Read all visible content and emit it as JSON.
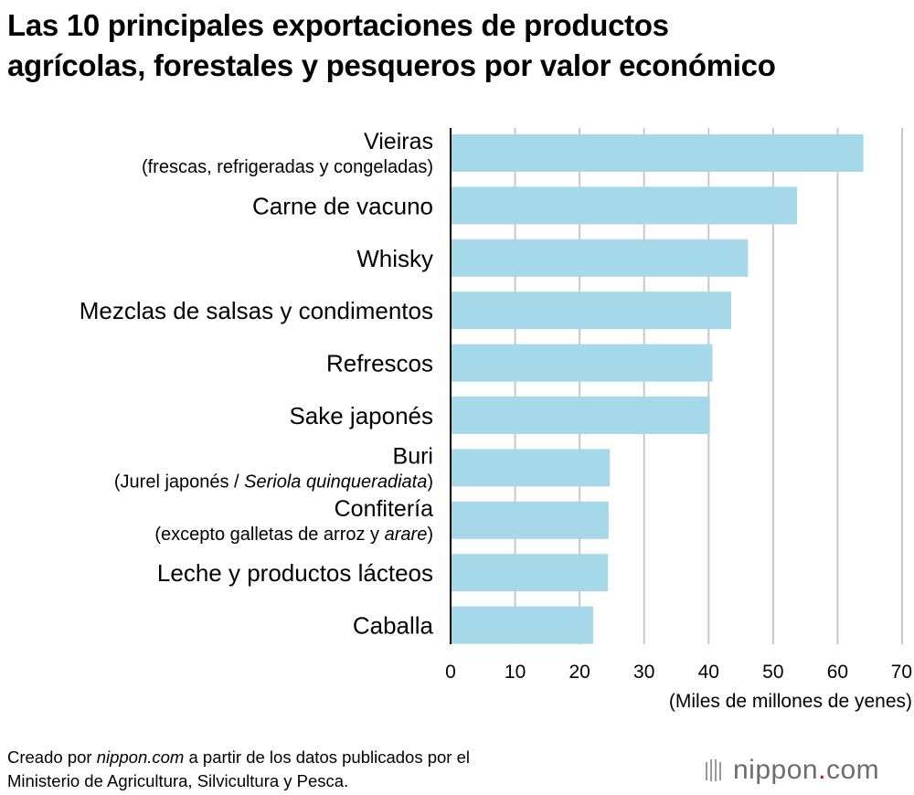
{
  "title": {
    "line1": "Las 10 principales exportaciones de productos",
    "line2": "agrícolas, forestales y pesqueros por valor económico"
  },
  "chart_data": {
    "type": "bar",
    "orientation": "horizontal",
    "categories": [
      {
        "main": "Vieiras",
        "sub": [
          {
            "t": "(frescas, refrigeradas y congeladas)"
          }
        ]
      },
      {
        "main": "Carne de vacuno",
        "sub": []
      },
      {
        "main": "Whisky",
        "sub": []
      },
      {
        "main": "Mezclas de salsas y condimentos",
        "sub": []
      },
      {
        "main": "Refrescos",
        "sub": []
      },
      {
        "main": "Sake japonés",
        "sub": []
      },
      {
        "main": "Buri",
        "sub": [
          {
            "t": "(Jurel japonés / "
          },
          {
            "t": "Seriola quinqueradiata",
            "i": true
          },
          {
            "t": ")"
          }
        ]
      },
      {
        "main": "Confitería",
        "sub": [
          {
            "t": "(excepto galletas de arroz y "
          },
          {
            "t": "arare",
            "i": true
          },
          {
            "t": ")"
          }
        ]
      },
      {
        "main": "Leche y productos lácteos",
        "sub": []
      },
      {
        "main": "Caballa",
        "sub": []
      }
    ],
    "values": [
      64.0,
      53.7,
      46.1,
      43.5,
      40.6,
      40.2,
      24.7,
      24.5,
      24.4,
      22.1
    ],
    "xlim": [
      0,
      70
    ],
    "xticks": [
      0,
      10,
      20,
      30,
      40,
      50,
      60,
      70
    ],
    "xlabel": "(Miles de millones de yenes)",
    "grid": true,
    "bar_color": "#a5d8e8"
  },
  "footer": {
    "line1_pre": "Creado por ",
    "line1_italic": "nippon.com",
    "line1_post": " a partir de los datos publicados por el",
    "line2": "Ministerio de Agricultura, Silvicultura y Pesca."
  },
  "logo": {
    "left": "nippon",
    "dot": ".",
    "right": "com"
  }
}
